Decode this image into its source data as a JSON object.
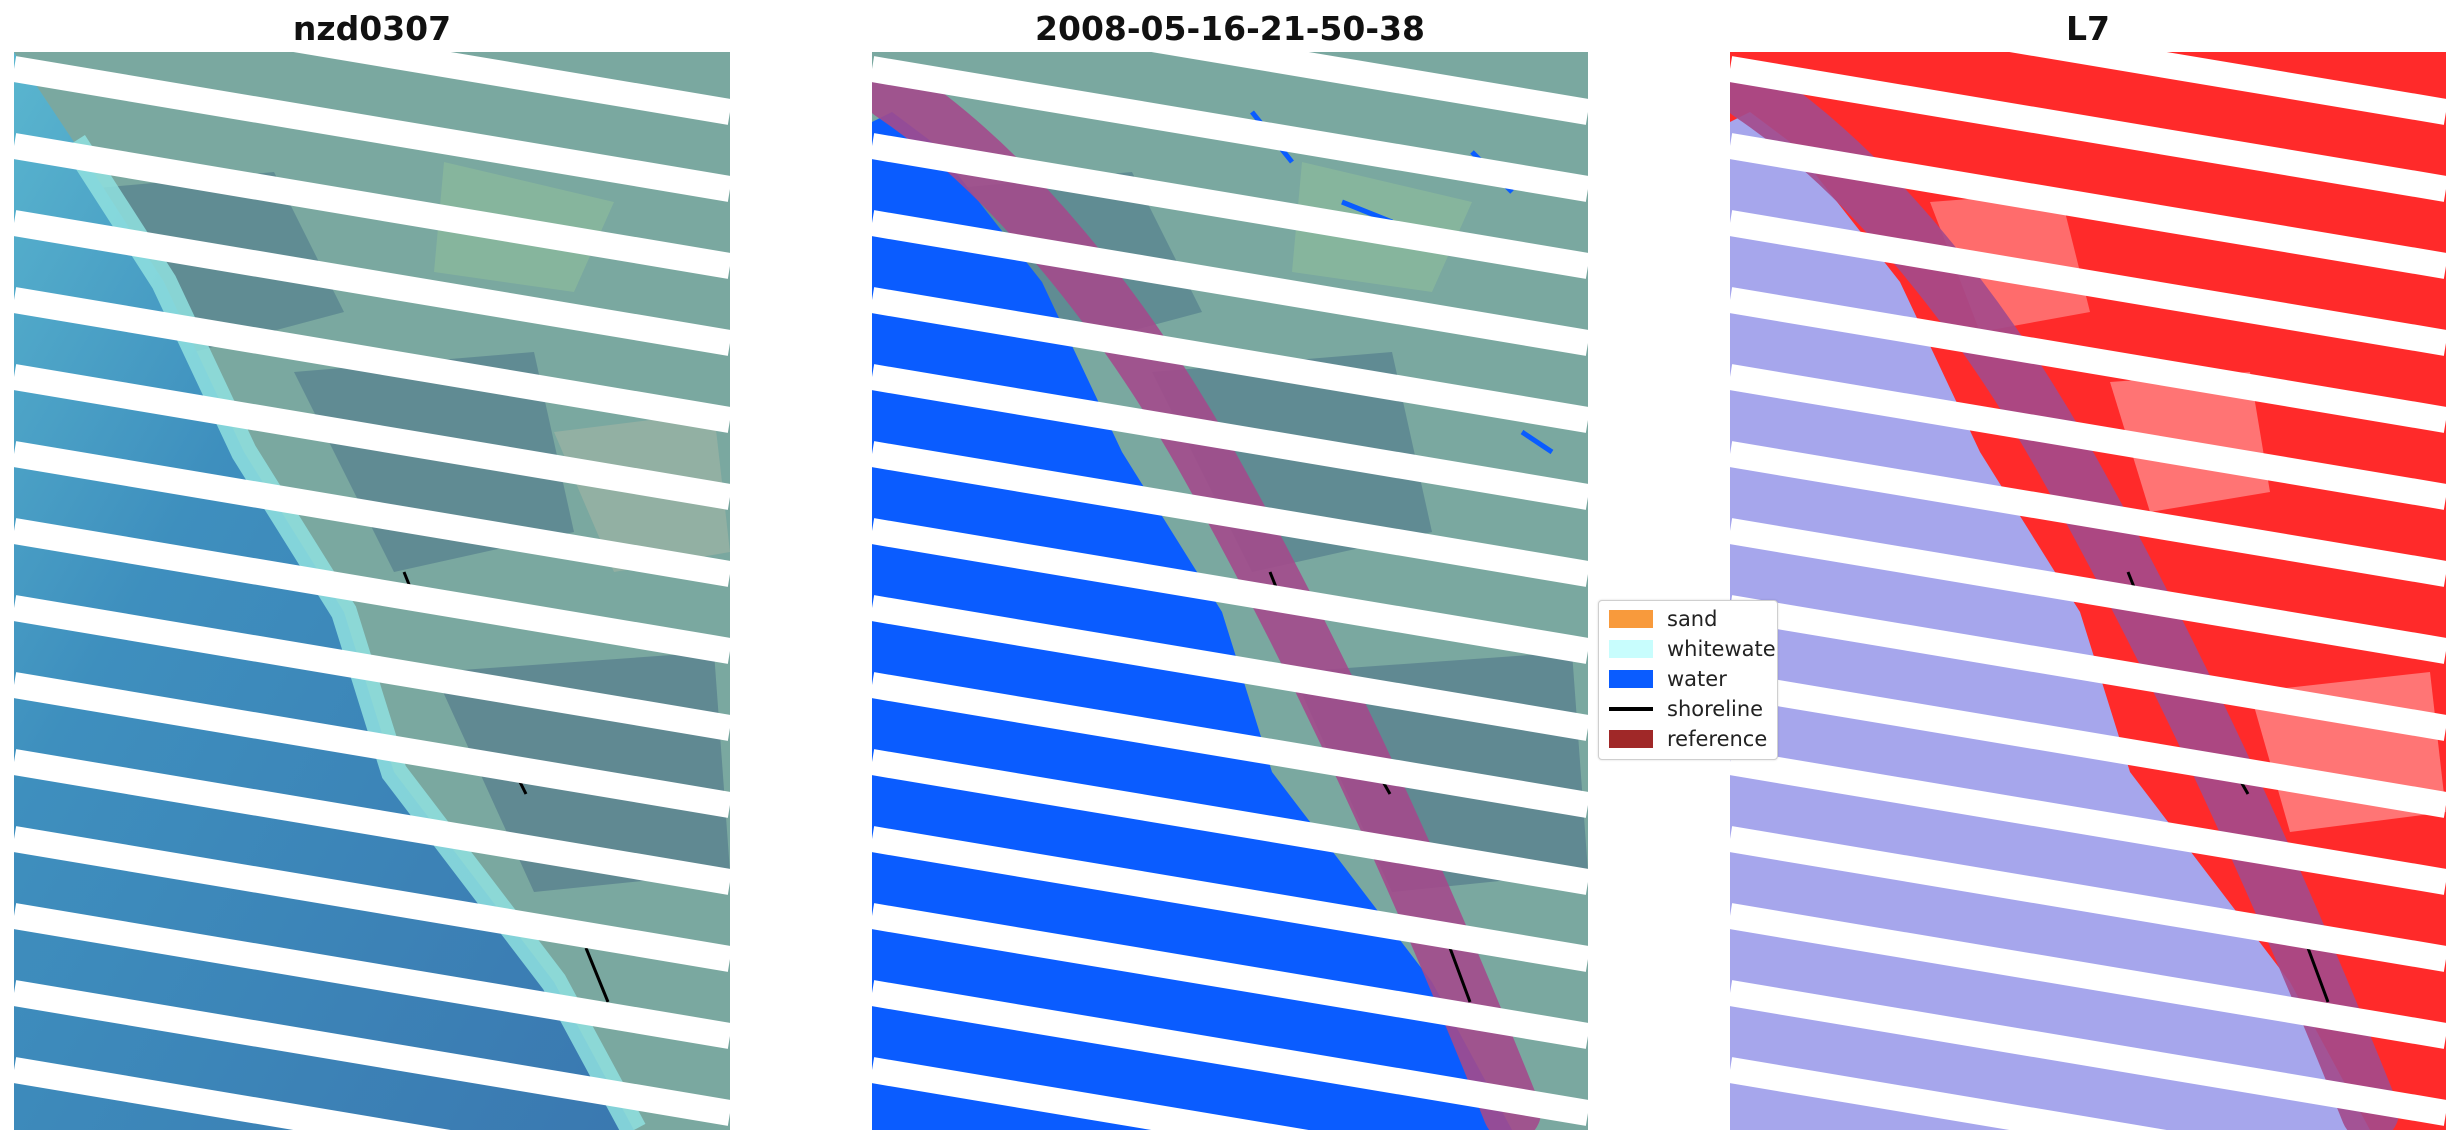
{
  "panels": [
    {
      "title": "nzd0307"
    },
    {
      "title": "2008-05-16-21-50-38"
    },
    {
      "title": "L7"
    }
  ],
  "legend": {
    "items": [
      {
        "label": "sand",
        "type": "patch",
        "color": "#f89a3c"
      },
      {
        "label": "whitewater",
        "type": "patch",
        "color": "#c8fdfd"
      },
      {
        "label": "water",
        "type": "patch",
        "color": "#0a5cff"
      },
      {
        "label": "shoreline",
        "type": "line",
        "color": "#000000"
      },
      {
        "label": "reference",
        "type": "patch",
        "color": "#a02828"
      }
    ]
  },
  "colors": {
    "water_rgb": "#3d7bb5",
    "water_class": "#0a5cff",
    "land_rgb": "#6f9a98",
    "surf": "#7fd3d3",
    "reference_buffer": "#a34a8c",
    "ndwi_land": "#ff2a2a",
    "ndwi_water": "#a6a6ec"
  }
}
